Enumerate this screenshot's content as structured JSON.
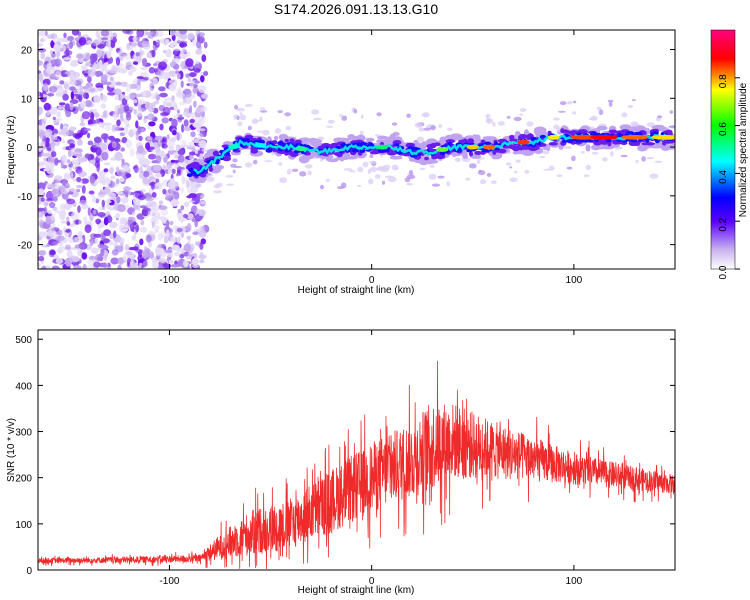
{
  "chart_data": [
    {
      "type": "heatmap",
      "title": "S174.2026.091.13.13.G10",
      "xlabel": "Height of straight line (km)",
      "ylabel": "Frequency (Hz)",
      "xlim": [
        -165,
        150
      ],
      "ylim": [
        -25,
        24
      ],
      "xticks": [
        -100,
        0,
        100
      ],
      "yticks": [
        -20,
        -10,
        0,
        10,
        20
      ],
      "colorbar": {
        "label": "Normalized spectral amplitude",
        "range": [
          0,
          1
        ],
        "ticks": [
          0.0,
          0.2,
          0.4,
          0.6,
          0.8
        ]
      },
      "ridge": {
        "description": "frequency track",
        "x": [
          -85,
          -75,
          -65,
          -50,
          -40,
          -25,
          -10,
          0,
          10,
          20,
          30,
          40,
          50,
          60,
          70,
          80,
          90,
          100,
          110,
          120,
          130,
          140,
          150
        ],
        "y": [
          -5,
          -2,
          1,
          0,
          0,
          -1,
          0,
          0,
          0,
          -1,
          -1,
          0,
          0,
          0,
          1,
          1,
          2,
          2,
          2,
          2,
          2,
          2,
          2
        ]
      }
    },
    {
      "type": "line",
      "xlabel": "Height of straight line (km)",
      "ylabel": "SNR (10 * v/v)",
      "xlim": [
        -165,
        150
      ],
      "ylim": [
        0,
        520
      ],
      "xticks": [
        -100,
        0,
        100
      ],
      "yticks": [
        0,
        100,
        200,
        300,
        400,
        500
      ],
      "color": "#ee2a2a",
      "envelope": {
        "x": [
          -165,
          -120,
          -85,
          -75,
          -60,
          -40,
          -20,
          0,
          20,
          30,
          40,
          60,
          80,
          100,
          120,
          150
        ],
        "mean": [
          20,
          22,
          25,
          50,
          80,
          100,
          150,
          200,
          240,
          270,
          280,
          260,
          240,
          220,
          205,
          185
        ],
        "spread": [
          8,
          10,
          12,
          40,
          70,
          80,
          100,
          110,
          120,
          140,
          120,
          90,
          70,
          50,
          40,
          30
        ]
      }
    }
  ]
}
